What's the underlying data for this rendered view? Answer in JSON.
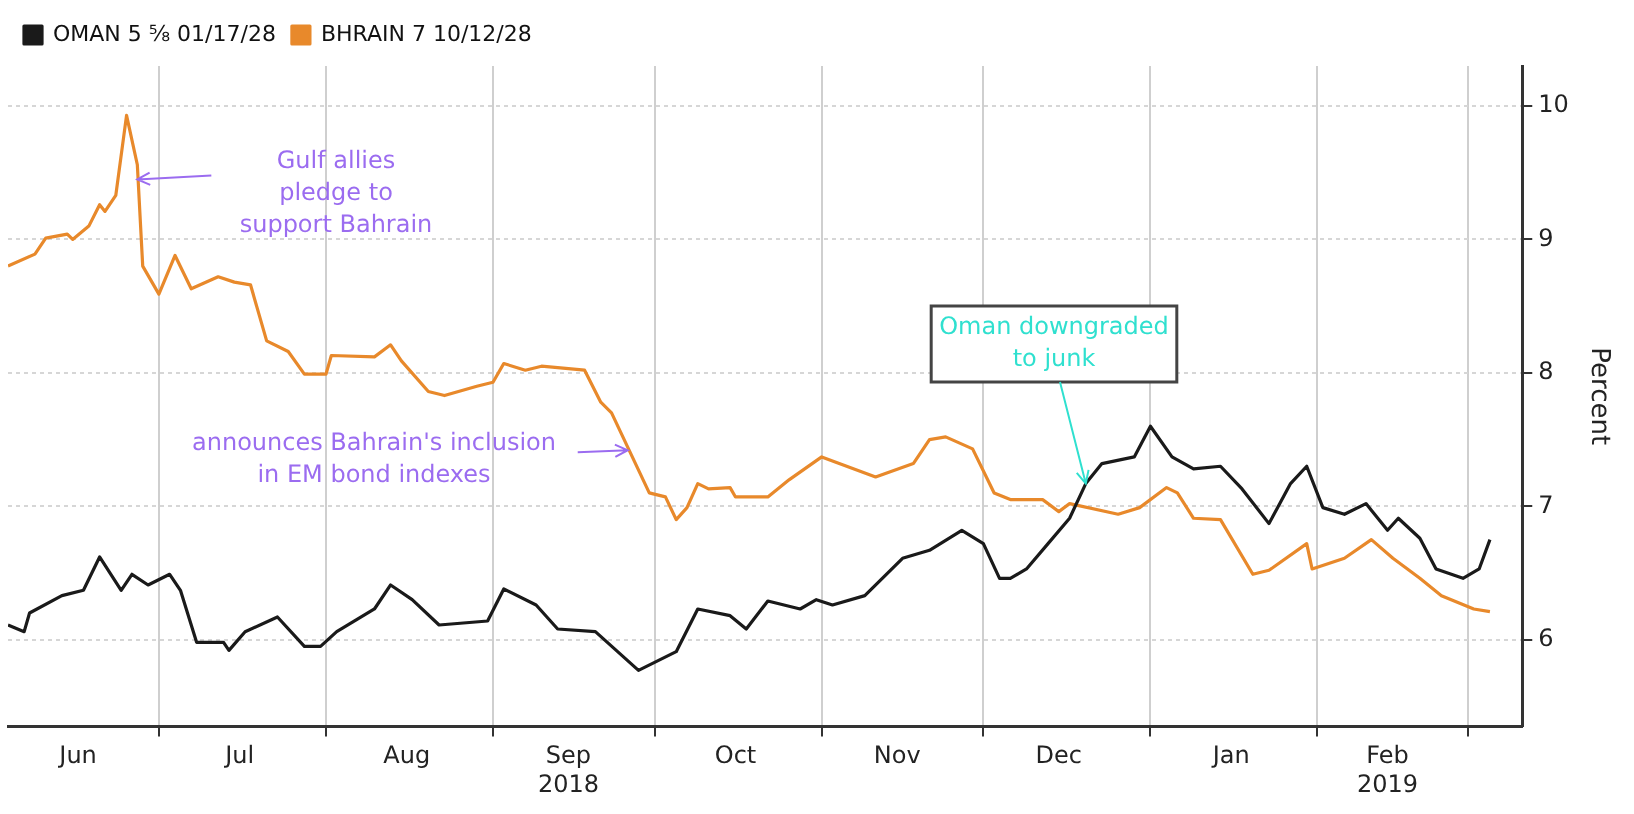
{
  "chart_data": {
    "type": "line",
    "ylabel": "Percent",
    "legend": "top left",
    "grid": true,
    "marker": "none",
    "line_style": "solid",
    "xlim": [
      "2018-06-03",
      "2019-03-11"
    ],
    "ylim": [
      5.35,
      10.3
    ],
    "yticks": [
      6,
      7,
      8,
      9,
      10
    ],
    "xticks": [
      {
        "value": "2018-06-16",
        "label": "Jun"
      },
      {
        "value": "2018-07-01",
        "label": null
      },
      {
        "value": "2018-07-16",
        "label": "Jul"
      },
      {
        "value": "2018-08-01",
        "label": null
      },
      {
        "value": "2018-08-16",
        "label": "Aug"
      },
      {
        "value": "2018-09-01",
        "label": null
      },
      {
        "value": "2018-09-15",
        "label": "Sep\n2018"
      },
      {
        "value": "2018-10-01",
        "label": null
      },
      {
        "value": "2018-10-16",
        "label": "Oct"
      },
      {
        "value": "2018-11-01",
        "label": null
      },
      {
        "value": "2018-11-15",
        "label": "Nov"
      },
      {
        "value": "2018-12-01",
        "label": null
      },
      {
        "value": "2018-12-15",
        "label": "Dec"
      },
      {
        "value": "2019-01-01",
        "label": null
      },
      {
        "value": "2019-01-16",
        "label": "Jan"
      },
      {
        "value": "2019-02-01",
        "label": null
      },
      {
        "value": "2019-02-14",
        "label": "Feb\n2019"
      },
      {
        "value": "2019-03-01",
        "label": null
      }
    ],
    "series": [
      {
        "name": "OMAN 5 ⅝ 01/17/28",
        "color": "#1a1a1a",
        "x": [
          "2018-06-03",
          "2018-06-06",
          "2018-06-07",
          "2018-06-13",
          "2018-06-17",
          "2018-06-20",
          "2018-06-24",
          "2018-06-26",
          "2018-06-29",
          "2018-07-03",
          "2018-07-05",
          "2018-07-08",
          "2018-07-13",
          "2018-07-14",
          "2018-07-17",
          "2018-07-23",
          "2018-07-28",
          "2018-07-31",
          "2018-08-03",
          "2018-08-10",
          "2018-08-13",
          "2018-08-17",
          "2018-08-22",
          "2018-08-31",
          "2018-09-03",
          "2018-09-09",
          "2018-09-13",
          "2018-09-20",
          "2018-09-28",
          "2018-10-05",
          "2018-10-09",
          "2018-10-15",
          "2018-10-18",
          "2018-10-22",
          "2018-10-28",
          "2018-10-31",
          "2018-11-03",
          "2018-11-09",
          "2018-11-16",
          "2018-11-21",
          "2018-11-27",
          "2018-12-01",
          "2018-12-04",
          "2018-12-06",
          "2018-12-09",
          "2018-12-13",
          "2018-12-17",
          "2018-12-20",
          "2018-12-23",
          "2018-12-29",
          "2019-01-01",
          "2019-01-05",
          "2019-01-09",
          "2019-01-14",
          "2019-01-18",
          "2019-01-23",
          "2019-01-27",
          "2019-01-30",
          "2019-02-02",
          "2019-02-06",
          "2019-02-10",
          "2019-02-14",
          "2019-02-16",
          "2019-02-20",
          "2019-02-23",
          "2019-02-28",
          "2019-03-03",
          "2019-03-05"
        ],
        "values": [
          6.11,
          6.06,
          6.2,
          6.33,
          6.37,
          6.62,
          6.37,
          6.49,
          6.41,
          6.49,
          6.37,
          5.98,
          5.98,
          5.92,
          6.06,
          6.17,
          5.95,
          5.95,
          6.06,
          6.23,
          6.41,
          6.3,
          6.11,
          6.14,
          6.38,
          6.26,
          6.08,
          6.06,
          5.77,
          5.91,
          6.23,
          6.18,
          6.08,
          6.29,
          6.23,
          6.3,
          6.26,
          6.33,
          6.61,
          6.67,
          6.82,
          6.72,
          6.46,
          6.46,
          6.53,
          6.72,
          6.91,
          7.17,
          7.32,
          7.37,
          7.6,
          7.37,
          7.28,
          7.3,
          7.13,
          6.87,
          7.17,
          7.3,
          6.99,
          6.94,
          7.02,
          6.82,
          6.91,
          6.76,
          6.53,
          6.46,
          6.53,
          6.75
        ]
      },
      {
        "name": "BHRAIN 7 10/12/28",
        "color": "#e8892b",
        "x": [
          "2018-06-03",
          "2018-06-08",
          "2018-06-10",
          "2018-06-14",
          "2018-06-15",
          "2018-06-18",
          "2018-06-20",
          "2018-06-21",
          "2018-06-23",
          "2018-06-25",
          "2018-06-27",
          "2018-06-28",
          "2018-07-01",
          "2018-07-04",
          "2018-07-07",
          "2018-07-12",
          "2018-07-15",
          "2018-07-18",
          "2018-07-21",
          "2018-07-25",
          "2018-07-28",
          "2018-08-01",
          "2018-08-02",
          "2018-08-10",
          "2018-08-13",
          "2018-08-15",
          "2018-08-20",
          "2018-08-23",
          "2018-08-29",
          "2018-09-01",
          "2018-09-03",
          "2018-09-07",
          "2018-09-10",
          "2018-09-18",
          "2018-09-21",
          "2018-09-23",
          "2018-09-30",
          "2018-10-03",
          "2018-10-05",
          "2018-10-07",
          "2018-10-09",
          "2018-10-11",
          "2018-10-15",
          "2018-10-16",
          "2018-10-21",
          "2018-10-22",
          "2018-10-26",
          "2018-11-01",
          "2018-11-11",
          "2018-11-18",
          "2018-11-21",
          "2018-11-24",
          "2018-11-29",
          "2018-12-03",
          "2018-12-06",
          "2018-12-12",
          "2018-12-15",
          "2018-12-17",
          "2018-12-26",
          "2018-12-30",
          "2019-01-04",
          "2019-01-06",
          "2019-01-09",
          "2019-01-14",
          "2019-01-20",
          "2019-01-23",
          "2019-01-30",
          "2019-01-31",
          "2019-02-06",
          "2019-02-11",
          "2019-02-15",
          "2019-02-20",
          "2019-02-24",
          "2019-03-02",
          "2019-03-05"
        ],
        "values": [
          8.8,
          8.89,
          9.01,
          9.04,
          9.0,
          9.1,
          9.26,
          9.21,
          9.33,
          9.93,
          9.56,
          8.8,
          8.59,
          8.88,
          8.63,
          8.72,
          8.68,
          8.66,
          8.24,
          8.16,
          7.99,
          7.99,
          8.13,
          8.12,
          8.21,
          8.09,
          7.86,
          7.83,
          7.9,
          7.93,
          8.07,
          8.02,
          8.05,
          8.02,
          7.78,
          7.7,
          7.1,
          7.07,
          6.9,
          6.99,
          7.17,
          7.13,
          7.14,
          7.07,
          7.07,
          7.07,
          7.2,
          7.37,
          7.22,
          7.32,
          7.5,
          7.52,
          7.43,
          7.1,
          7.05,
          7.05,
          6.96,
          7.02,
          6.94,
          6.99,
          7.14,
          7.1,
          6.91,
          6.9,
          6.49,
          6.52,
          6.72,
          6.53,
          6.61,
          6.75,
          6.61,
          6.46,
          6.33,
          6.23,
          6.21
        ]
      }
    ],
    "annotations": [
      {
        "text": "Gulf allies\npledge to\nsupport Bahrain",
        "x": "2018-06-27",
        "y": 9.45
      },
      {
        "text": "announces Bahrain's inclusion\nin EM bond indexes",
        "x": "2018-09-26",
        "y": 7.42
      },
      {
        "text": "Oman downgraded\nto junk",
        "x": "2018-12-20",
        "y": 7.17
      }
    ]
  }
}
